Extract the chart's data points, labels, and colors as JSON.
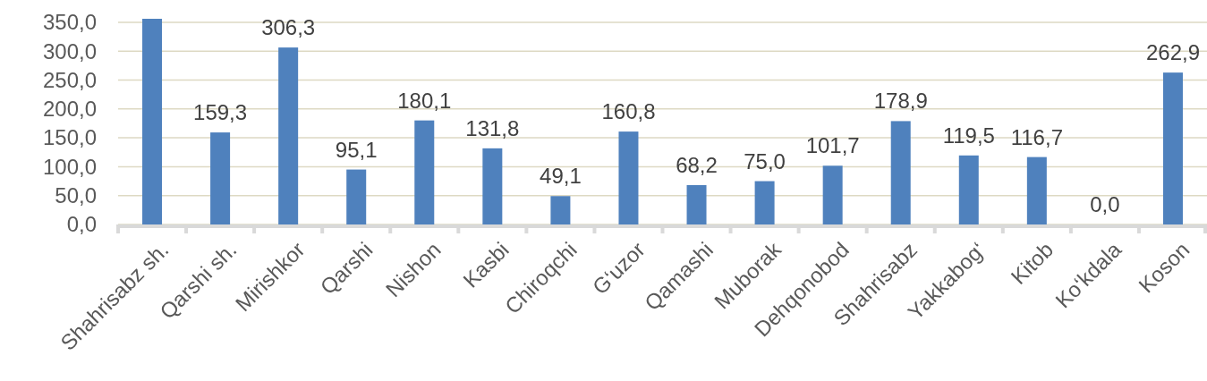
{
  "chart_data": {
    "type": "bar",
    "categories": [
      "Shahrisabz sh.",
      "Qarshi sh.",
      "Mirishkor",
      "Qarshi",
      "Nishon",
      "Kasbi",
      "Chiroqchi",
      "G‘uzor",
      "Qamashi",
      "Muborak",
      "Dehqonobod",
      "Shahrisabz",
      "Yakkabog‘",
      "Kitob",
      "Ko‘kdala",
      "Koson"
    ],
    "values": [
      356,
      159.3,
      306.3,
      95.1,
      180.1,
      131.8,
      49.1,
      160.8,
      68.2,
      75.0,
      101.7,
      178.9,
      119.5,
      116.7,
      0.0,
      262.9
    ],
    "value_labels": [
      null,
      "159,3",
      "306,3",
      "95,1",
      "180,1",
      "131,8",
      "49,1",
      "160,8",
      "68,2",
      "75,0",
      "101,7",
      "178,9",
      "119,5",
      "116,7",
      "0,0",
      "262,9"
    ],
    "color": "#4f81bd",
    "ylim": [
      0,
      356
    ],
    "yticks": [
      {
        "value": 0,
        "label": "0,0"
      },
      {
        "value": 50,
        "label": "50,0"
      },
      {
        "value": 100,
        "label": "100,0"
      },
      {
        "value": 150,
        "label": "150,0"
      },
      {
        "value": 200,
        "label": "200,0"
      },
      {
        "value": 250,
        "label": "250,0"
      },
      {
        "value": 300,
        "label": "300,0"
      },
      {
        "value": 350,
        "label": "350,0"
      }
    ],
    "grid": "y"
  }
}
